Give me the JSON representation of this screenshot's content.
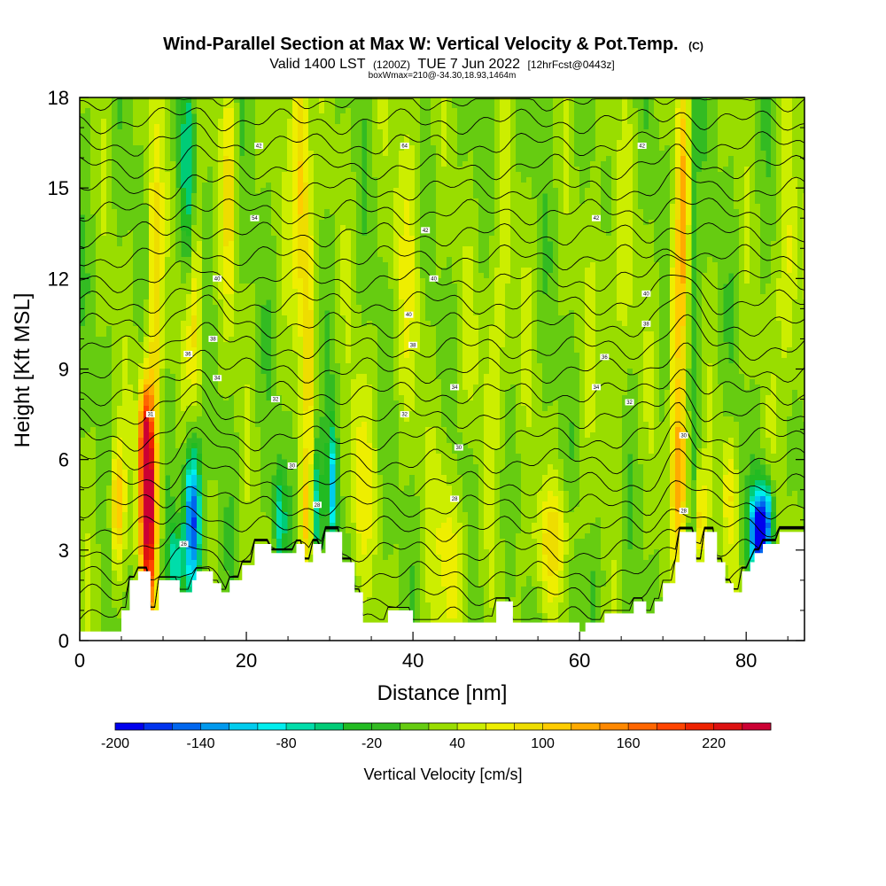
{
  "title": "Wind-Parallel Section at Max W: Vertical Velocity & Pot.Temp.",
  "title_units": "(C)",
  "subtitle_parts": [
    "Valid 1400 LST",
    "(1200Z)",
    "TUE 7 Jun 2022",
    "[12hrFcst@0443z]"
  ],
  "box_info": "boxWmax=210@-34.30,18.93,1464m",
  "colors": {
    "plot_bg": "#33bb22",
    "terrain": "#ffffff",
    "contour": "#000000",
    "border": "#000000"
  },
  "chart_data": {
    "type": "heatmap",
    "xlabel": "Distance [nm]",
    "ylabel": "Height [Kft MSL]",
    "xlim": [
      0,
      87
    ],
    "ylim": [
      0,
      18
    ],
    "x_ticks": [
      0,
      20,
      40,
      60,
      80
    ],
    "y_ticks": [
      0,
      3,
      6,
      9,
      12,
      15,
      18
    ],
    "colorbar": {
      "label": "Vertical Velocity [cm/s]",
      "min": -200,
      "max": 260,
      "step": 20,
      "tick_labels": [
        "-200",
        "-140",
        "-80",
        "-20",
        "40",
        "100",
        "160",
        "220"
      ],
      "tick_values": [
        -200,
        -140,
        -80,
        -20,
        40,
        100,
        160,
        220
      ],
      "colors": [
        "#0000ee",
        "#0033ee",
        "#0066ee",
        "#0099ee",
        "#00ccee",
        "#00eeee",
        "#00ddaa",
        "#00cc77",
        "#22bb22",
        "#33bb22",
        "#66cc11",
        "#99dd00",
        "#ccee00",
        "#eeee00",
        "#eedd00",
        "#ffcc00",
        "#ffaa00",
        "#ff8800",
        "#ff6600",
        "#ff4400",
        "#ee2200",
        "#dd1111",
        "#cc0033"
      ]
    },
    "terrain_profile": [
      [
        0,
        0.3
      ],
      [
        5,
        0.3
      ],
      [
        5,
        1.0
      ],
      [
        6,
        1.0
      ],
      [
        6,
        2.0
      ],
      [
        7,
        2.0
      ],
      [
        7,
        2.3
      ],
      [
        8.5,
        2.3
      ],
      [
        8.5,
        1.0
      ],
      [
        9.5,
        1.0
      ],
      [
        9.5,
        2.0
      ],
      [
        12,
        2.0
      ],
      [
        12,
        1.6
      ],
      [
        13.5,
        1.6
      ],
      [
        13.5,
        2.0
      ],
      [
        14,
        2.0
      ],
      [
        14,
        2.3
      ],
      [
        16,
        2.3
      ],
      [
        16,
        1.9
      ],
      [
        17,
        1.9
      ],
      [
        17,
        1.6
      ],
      [
        18,
        1.6
      ],
      [
        18,
        2.0
      ],
      [
        19.5,
        2.0
      ],
      [
        19.5,
        2.5
      ],
      [
        21,
        2.5
      ],
      [
        21,
        3.2
      ],
      [
        23,
        3.2
      ],
      [
        23,
        2.9
      ],
      [
        26,
        2.9
      ],
      [
        26,
        3.2
      ],
      [
        27,
        3.2
      ],
      [
        27,
        2.6
      ],
      [
        28,
        2.6
      ],
      [
        28,
        3.2
      ],
      [
        29,
        3.2
      ],
      [
        29,
        2.9
      ],
      [
        29.5,
        2.9
      ],
      [
        29.5,
        3.6
      ],
      [
        31.5,
        3.6
      ],
      [
        31.5,
        2.6
      ],
      [
        33,
        2.6
      ],
      [
        33,
        1.6
      ],
      [
        34,
        1.6
      ],
      [
        34,
        0.6
      ],
      [
        37,
        0.6
      ],
      [
        37,
        1.0
      ],
      [
        40,
        1.0
      ],
      [
        40,
        0.6
      ],
      [
        50,
        0.6
      ],
      [
        50,
        1.3
      ],
      [
        52,
        1.3
      ],
      [
        52,
        0.6
      ],
      [
        60,
        0.6
      ],
      [
        60,
        0.3
      ],
      [
        60.7,
        0.3
      ],
      [
        60.7,
        0.6
      ],
      [
        63,
        0.6
      ],
      [
        63,
        0.9
      ],
      [
        66.5,
        0.9
      ],
      [
        66.5,
        1.3
      ],
      [
        68,
        1.3
      ],
      [
        68,
        0.9
      ],
      [
        69,
        0.9
      ],
      [
        69,
        1.3
      ],
      [
        70,
        1.3
      ],
      [
        70,
        1.9
      ],
      [
        71.5,
        1.9
      ],
      [
        71.5,
        2.6
      ],
      [
        72,
        2.6
      ],
      [
        72,
        3.6
      ],
      [
        74,
        3.6
      ],
      [
        74,
        2.6
      ],
      [
        75,
        2.6
      ],
      [
        75,
        3.6
      ],
      [
        76.5,
        3.6
      ],
      [
        76.5,
        2.6
      ],
      [
        77.5,
        2.6
      ],
      [
        77.5,
        1.9
      ],
      [
        78.5,
        1.9
      ],
      [
        78.5,
        1.6
      ],
      [
        79.5,
        1.6
      ],
      [
        79.5,
        2.3
      ],
      [
        80.5,
        2.3
      ],
      [
        80.5,
        2.6
      ],
      [
        81,
        2.6
      ],
      [
        81,
        2.9
      ],
      [
        82,
        2.9
      ],
      [
        82,
        3.2
      ],
      [
        84,
        3.2
      ],
      [
        84,
        3.6
      ],
      [
        87,
        3.6
      ]
    ],
    "w_features": [
      {
        "x": 8.2,
        "y": 4.5,
        "sx": 0.7,
        "sy": 2.6,
        "amp": 240
      },
      {
        "x": 7.8,
        "y": 6.8,
        "sx": 0.5,
        "sy": 1.2,
        "amp": 100
      },
      {
        "x": 4.5,
        "y": 4.5,
        "sx": 0.6,
        "sy": 1.5,
        "amp": 100
      },
      {
        "x": 13.5,
        "y": 4.0,
        "sx": 0.7,
        "sy": 1.8,
        "amp": -200
      },
      {
        "x": 11.5,
        "y": 2.6,
        "sx": 0.6,
        "sy": 0.8,
        "amp": -90
      },
      {
        "x": 13.0,
        "y": 14.0,
        "sx": 0.6,
        "sy": 3.5,
        "amp": -90
      },
      {
        "x": 13.5,
        "y": 11.0,
        "sx": 0.9,
        "sy": 2.5,
        "amp": 90
      },
      {
        "x": 9.0,
        "y": 12.0,
        "sx": 0.6,
        "sy": 4.0,
        "amp": 70
      },
      {
        "x": 18.0,
        "y": 15.0,
        "sx": 0.6,
        "sy": 3.0,
        "amp": 60
      },
      {
        "x": 26.5,
        "y": 15.5,
        "sx": 0.7,
        "sy": 3.5,
        "amp": 100
      },
      {
        "x": 27.5,
        "y": 10.0,
        "sx": 0.5,
        "sy": 3.5,
        "amp": 60
      },
      {
        "x": 24.0,
        "y": 4.0,
        "sx": 0.5,
        "sy": 1.2,
        "amp": -90
      },
      {
        "x": 28.5,
        "y": 4.6,
        "sx": 0.4,
        "sy": 1.5,
        "amp": -100
      },
      {
        "x": 30.3,
        "y": 5.0,
        "sx": 0.4,
        "sy": 1.4,
        "amp": -130
      },
      {
        "x": 27.0,
        "y": 4.0,
        "sx": 0.4,
        "sy": 1.2,
        "amp": 70
      },
      {
        "x": 33.5,
        "y": 5.0,
        "sx": 1.0,
        "sy": 2.5,
        "amp": 50
      },
      {
        "x": 44.5,
        "y": 3.5,
        "sx": 1.3,
        "sy": 2.5,
        "amp": 60
      },
      {
        "x": 46.0,
        "y": 5.5,
        "sx": 1.0,
        "sy": 1.5,
        "amp": -30
      },
      {
        "x": 57.0,
        "y": 3.2,
        "sx": 2.0,
        "sy": 1.3,
        "amp": 60
      },
      {
        "x": 60.0,
        "y": 2.4,
        "sx": 2.0,
        "sy": 1.0,
        "amp": -20
      },
      {
        "x": 72.0,
        "y": 5.5,
        "sx": 0.7,
        "sy": 2.0,
        "amp": 110
      },
      {
        "x": 72.5,
        "y": 14.5,
        "sx": 0.6,
        "sy": 4.0,
        "amp": 90
      },
      {
        "x": 71.5,
        "y": 11.0,
        "sx": 0.6,
        "sy": 2.5,
        "amp": 70
      },
      {
        "x": 73.5,
        "y": 13.0,
        "sx": 0.5,
        "sy": 5.0,
        "amp": -60
      },
      {
        "x": 74.5,
        "y": 4.0,
        "sx": 0.5,
        "sy": 1.2,
        "amp": 80
      },
      {
        "x": 81.5,
        "y": 3.6,
        "sx": 0.8,
        "sy": 1.0,
        "amp": -200
      },
      {
        "x": 82.5,
        "y": 4.0,
        "sx": 0.6,
        "sy": 0.9,
        "amp": -110
      },
      {
        "x": 78.0,
        "y": 5.0,
        "sx": 0.6,
        "sy": 1.5,
        "amp": 60
      },
      {
        "x": 85.0,
        "y": 12.0,
        "sx": 0.8,
        "sy": 3.0,
        "amp": 60
      },
      {
        "x": 50.0,
        "y": 10.0,
        "sx": 2.0,
        "sy": 3.0,
        "amp": 30
      },
      {
        "x": 39.5,
        "y": 13.0,
        "sx": 1.5,
        "sy": 4.0,
        "amp": 30
      },
      {
        "x": 64.0,
        "y": 12.0,
        "sx": 2.0,
        "sy": 3.0,
        "amp": 25
      }
    ],
    "isentropes": {
      "count": 24,
      "y_start": 0.7,
      "y_step": 0.75,
      "labels": [
        {
          "text": "42",
          "x": 21.5,
          "y": 16.4
        },
        {
          "text": "64",
          "x": 39.0,
          "y": 16.4
        },
        {
          "text": "42",
          "x": 67.5,
          "y": 16.4
        },
        {
          "text": "54",
          "x": 21.0,
          "y": 14.0
        },
        {
          "text": "42",
          "x": 41.5,
          "y": 13.6
        },
        {
          "text": "42",
          "x": 62.0,
          "y": 14.0
        },
        {
          "text": "40",
          "x": 16.5,
          "y": 12.0
        },
        {
          "text": "40",
          "x": 42.5,
          "y": 12.0
        },
        {
          "text": "40",
          "x": 68.0,
          "y": 11.5
        },
        {
          "text": "40",
          "x": 39.5,
          "y": 10.8
        },
        {
          "text": "38",
          "x": 16.0,
          "y": 10.0
        },
        {
          "text": "38",
          "x": 40.0,
          "y": 9.8
        },
        {
          "text": "38",
          "x": 68.0,
          "y": 10.5
        },
        {
          "text": "36",
          "x": 13.0,
          "y": 9.5
        },
        {
          "text": "36",
          "x": 63.0,
          "y": 9.4
        },
        {
          "text": "34",
          "x": 16.5,
          "y": 8.7
        },
        {
          "text": "34",
          "x": 45.0,
          "y": 8.4
        },
        {
          "text": "34",
          "x": 62.0,
          "y": 8.4
        },
        {
          "text": "32",
          "x": 23.5,
          "y": 8.0
        },
        {
          "text": "32",
          "x": 66.0,
          "y": 7.9
        },
        {
          "text": "32",
          "x": 39.0,
          "y": 7.5
        },
        {
          "text": "31",
          "x": 8.5,
          "y": 7.5
        },
        {
          "text": "30",
          "x": 72.5,
          "y": 6.8
        },
        {
          "text": "30",
          "x": 45.5,
          "y": 6.4
        },
        {
          "text": "30",
          "x": 25.5,
          "y": 5.8
        },
        {
          "text": "28",
          "x": 45.0,
          "y": 4.7
        },
        {
          "text": "28",
          "x": 28.5,
          "y": 4.5
        },
        {
          "text": "28",
          "x": 72.5,
          "y": 4.3
        },
        {
          "text": "26",
          "x": 12.5,
          "y": 3.2
        }
      ]
    }
  }
}
